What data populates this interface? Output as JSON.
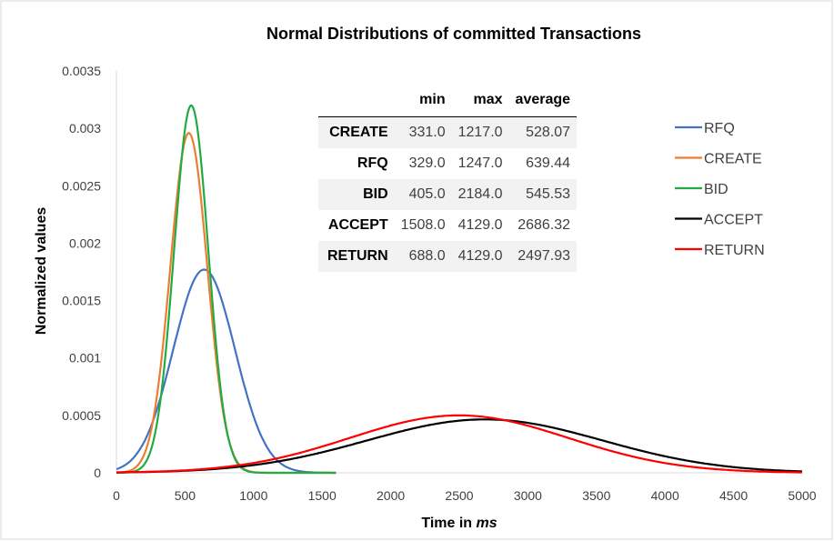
{
  "chart_data": {
    "type": "line",
    "title": "Normal Distributions of committed Transactions",
    "ylabel": "Normalized values",
    "xlabel_prefix": "Time in ",
    "xlabel_unit": "ms",
    "xlim": [
      0,
      5000
    ],
    "ylim": [
      0,
      0.0035
    ],
    "x_ticks": [
      "0",
      "500",
      "1000",
      "1500",
      "2000",
      "2500",
      "3000",
      "3500",
      "4000",
      "4500",
      "5000"
    ],
    "y_ticks": [
      "0",
      "0.0005",
      "0.001",
      "0.0015",
      "0.002",
      "0.0025",
      "0.003",
      "0.0035"
    ],
    "grid": false,
    "legend_position": "right",
    "series": [
      {
        "name": "RFQ",
        "color": "#4472c4",
        "mean": 639.44,
        "peak": 0.00177,
        "x_range": [
          0,
          1600
        ]
      },
      {
        "name": "CREATE",
        "color": "#ed7d31",
        "mean": 528.07,
        "peak": 0.00296,
        "x_range": [
          0,
          1600
        ]
      },
      {
        "name": "BID",
        "color": "#22aa44",
        "mean": 545.53,
        "peak": 0.0032,
        "x_range": [
          0,
          1600
        ]
      },
      {
        "name": "ACCEPT",
        "color": "#000000",
        "mean": 2686.32,
        "peak": 0.000465,
        "x_range": [
          0,
          5000
        ]
      },
      {
        "name": "RETURN",
        "color": "#ff0000",
        "mean": 2497.93,
        "peak": 0.0005,
        "x_range": [
          0,
          5000
        ]
      }
    ],
    "table": {
      "columns": [
        "",
        "min",
        "max",
        "average"
      ],
      "rows": [
        [
          "CREATE",
          "331.0",
          "1217.0",
          "528.07"
        ],
        [
          "RFQ",
          "329.0",
          "1247.0",
          "639.44"
        ],
        [
          "BID",
          "405.0",
          "2184.0",
          "545.53"
        ],
        [
          "ACCEPT",
          "1508.0",
          "4129.0",
          "2686.32"
        ],
        [
          "RETURN",
          "688.0",
          "4129.0",
          "2497.93"
        ]
      ]
    }
  }
}
